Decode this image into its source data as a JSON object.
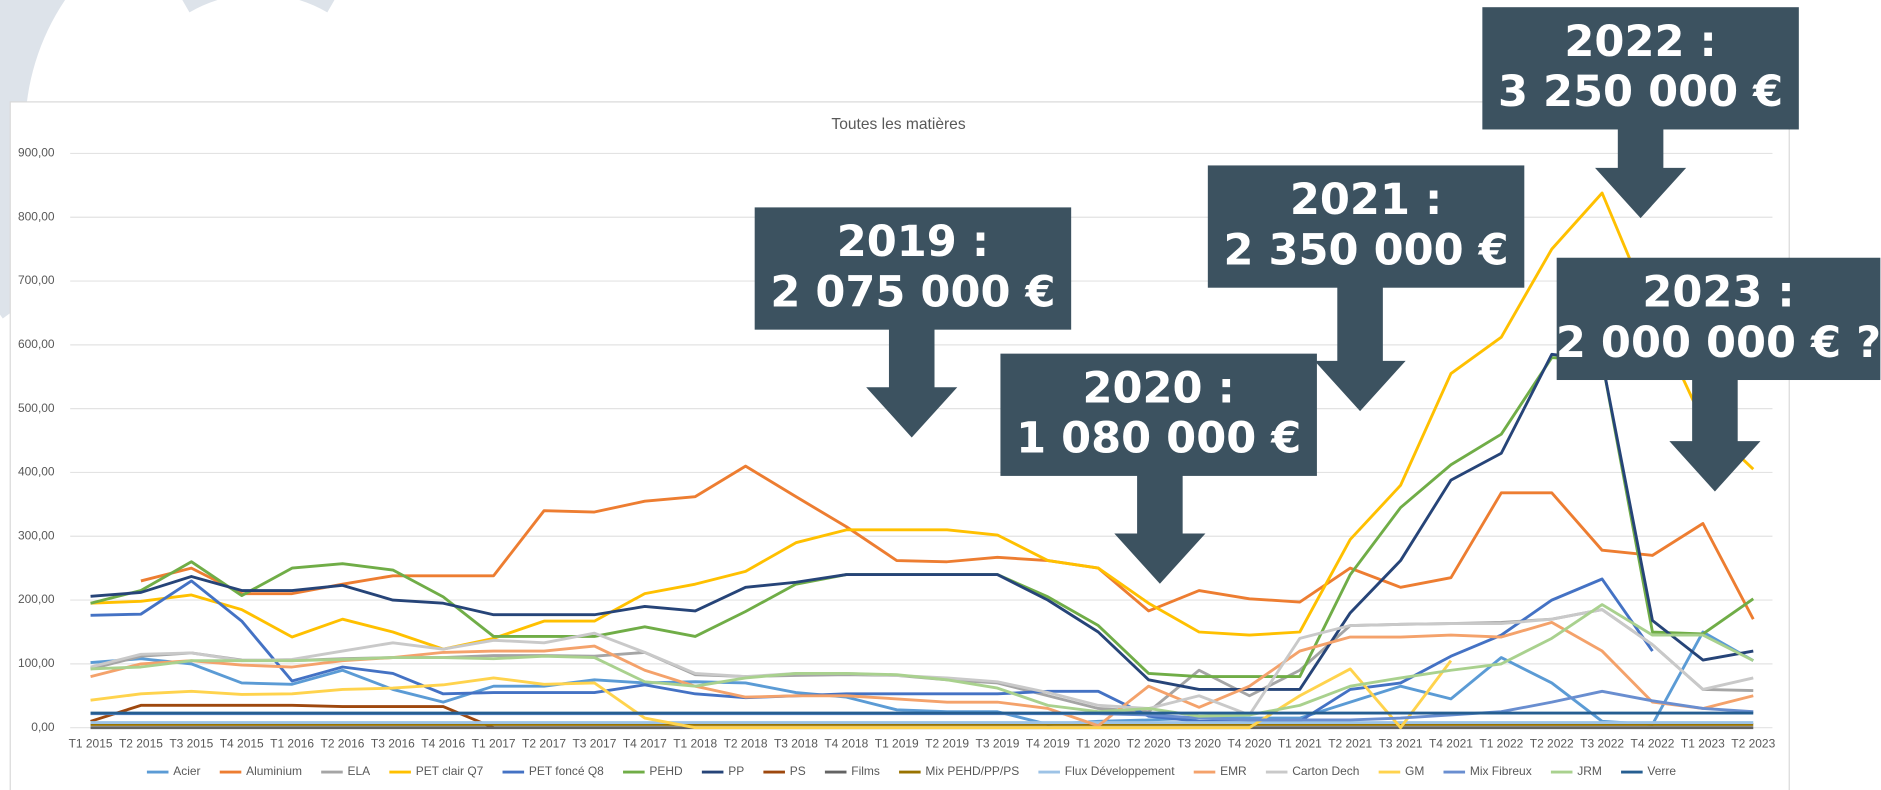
{
  "chart_data": {
    "type": "line",
    "title": "Toutes les matières",
    "categories": [
      "T1 2015",
      "T2 2015",
      "T3 2015",
      "T4 2015",
      "T1 2016",
      "T2 2016",
      "T3 2016",
      "T4 2016",
      "T1 2017",
      "T2 2017",
      "T3 2017",
      "T4 2017",
      "T1 2018",
      "T2 2018",
      "T3 2018",
      "T4 2018",
      "T1 2019",
      "T2 2019",
      "T3 2019",
      "T4 2019",
      "T1 2020",
      "T2 2020",
      "T3 2020",
      "T4 2020",
      "T1 2021",
      "T2 2021",
      "T3 2021",
      "T4 2021",
      "T1 2022",
      "T2 2022",
      "T3 2022",
      "T4 2022",
      "T1 2023",
      "T2 2023"
    ],
    "ylim": [
      0,
      900
    ],
    "yticks": [
      {
        "value": 0,
        "label": "0,00"
      },
      {
        "value": 100,
        "label": "100,00"
      },
      {
        "value": 200,
        "label": "200,00"
      },
      {
        "value": 300,
        "label": "300,00"
      },
      {
        "value": 400,
        "label": "400,00"
      },
      {
        "value": 500,
        "label": "500,00"
      },
      {
        "value": 600,
        "label": "600,00"
      },
      {
        "value": 700,
        "label": "700,00"
      },
      {
        "value": 800,
        "label": "800,00"
      },
      {
        "value": 900,
        "label": "900,00"
      }
    ],
    "grid": true,
    "legend": "bottom",
    "series": [
      {
        "name": "Acier",
        "color": "#5b9bd5",
        "values": [
          102,
          108,
          100,
          70,
          68,
          90,
          60,
          40,
          65,
          65,
          75,
          70,
          72,
          70,
          55,
          48,
          28,
          25,
          25,
          5,
          10,
          12,
          15,
          15,
          15,
          40,
          65,
          45,
          110,
          70,
          10,
          5,
          150,
          105
        ]
      },
      {
        "name": "Aluminium",
        "color": "#ed7d31",
        "values": [
          null,
          230,
          250,
          210,
          210,
          225,
          238,
          238,
          238,
          340,
          338,
          355,
          362,
          410,
          362,
          315,
          262,
          260,
          267,
          262,
          250,
          183,
          215,
          202,
          197,
          250,
          220,
          235,
          368,
          368,
          278,
          270,
          320,
          170
        ]
      },
      {
        "name": "ELA",
        "color": "#a5a5a5",
        "values": [
          92,
          112,
          117,
          106,
          105,
          108,
          110,
          110,
          113,
          113,
          112,
          118,
          83,
          80,
          82,
          83,
          82,
          75,
          70,
          50,
          30,
          25,
          90,
          50,
          90,
          160,
          162,
          163,
          165,
          170,
          185,
          130,
          60,
          58
        ]
      },
      {
        "name": "PET clair Q7",
        "color": "#ffc000",
        "values": [
          195,
          198,
          208,
          185,
          142,
          170,
          150,
          123,
          140,
          167,
          167,
          210,
          225,
          245,
          290,
          310,
          310,
          310,
          302,
          262,
          250,
          195,
          150,
          145,
          150,
          295,
          380,
          555,
          612,
          750,
          838,
          650,
          480,
          405
        ]
      },
      {
        "name": "PET foncé Q8",
        "color": "#4472c4",
        "values": [
          176,
          178,
          230,
          167,
          73,
          95,
          85,
          53,
          55,
          55,
          55,
          67,
          53,
          47,
          50,
          53,
          53,
          53,
          53,
          57,
          57,
          18,
          10,
          10,
          10,
          60,
          70,
          112,
          145,
          200,
          233,
          120,
          null,
          null
        ]
      },
      {
        "name": "PEHD",
        "color": "#70ad47",
        "values": [
          195,
          215,
          260,
          207,
          250,
          257,
          247,
          205,
          143,
          143,
          143,
          158,
          143,
          182,
          225,
          240,
          240,
          240,
          240,
          205,
          160,
          85,
          80,
          80,
          80,
          240,
          345,
          412,
          460,
          580,
          575,
          150,
          147,
          202
        ]
      },
      {
        "name": "PP",
        "color": "#264478",
        "values": [
          206,
          212,
          237,
          215,
          215,
          223,
          200,
          195,
          177,
          177,
          177,
          190,
          183,
          220,
          228,
          240,
          240,
          240,
          240,
          200,
          150,
          75,
          60,
          60,
          60,
          180,
          262,
          388,
          430,
          585,
          575,
          168,
          106,
          120
        ]
      },
      {
        "name": "PS",
        "color": "#9e480e",
        "values": [
          10,
          35,
          35,
          35,
          35,
          33,
          33,
          33,
          0,
          null,
          null,
          null,
          null,
          null,
          null,
          null,
          null,
          null,
          null,
          null,
          null,
          null,
          null,
          null,
          null,
          null,
          null,
          null,
          null,
          null,
          null,
          null,
          null,
          null
        ]
      },
      {
        "name": "Films",
        "color": "#636363",
        "values": [
          0,
          0,
          0,
          0,
          0,
          0,
          0,
          0,
          0,
          0,
          0,
          0,
          0,
          0,
          0,
          0,
          0,
          0,
          0,
          0,
          0,
          0,
          0,
          0,
          0,
          0,
          0,
          0,
          0,
          0,
          0,
          0,
          0,
          0
        ]
      },
      {
        "name": "Mix PEHD/PP/PS",
        "color": "#997300",
        "values": [
          5,
          5,
          5,
          5,
          5,
          5,
          5,
          5,
          5,
          5,
          5,
          5,
          5,
          5,
          5,
          5,
          5,
          5,
          5,
          5,
          5,
          5,
          5,
          5,
          5,
          5,
          5,
          5,
          5,
          5,
          5,
          5,
          5,
          5
        ]
      },
      {
        "name": "Flux Développement",
        "color": "#9dc3e6",
        "values": [
          8,
          8,
          8,
          8,
          8,
          8,
          8,
          8,
          8,
          8,
          8,
          8,
          8,
          8,
          8,
          8,
          8,
          8,
          8,
          8,
          8,
          8,
          8,
          8,
          8,
          8,
          8,
          8,
          8,
          8,
          8,
          8,
          8,
          8
        ]
      },
      {
        "name": "EMR",
        "color": "#f4a26b",
        "values": [
          80,
          100,
          105,
          98,
          95,
          105,
          110,
          118,
          120,
          120,
          128,
          90,
          65,
          48,
          50,
          50,
          45,
          40,
          40,
          30,
          3,
          65,
          32,
          65,
          120,
          142,
          142,
          145,
          142,
          165,
          120,
          40,
          30,
          50
        ]
      },
      {
        "name": "Carton Dech",
        "color": "#c9c9c9",
        "values": [
          95,
          115,
          117,
          105,
          107,
          120,
          133,
          123,
          137,
          133,
          148,
          118,
          85,
          80,
          85,
          85,
          82,
          78,
          72,
          55,
          35,
          30,
          50,
          20,
          140,
          160,
          162,
          163,
          163,
          170,
          185,
          130,
          60,
          78
        ]
      },
      {
        "name": "GM",
        "color": "#ffd34d",
        "values": [
          43,
          53,
          57,
          52,
          53,
          60,
          62,
          67,
          78,
          68,
          70,
          15,
          0,
          0,
          0,
          0,
          0,
          0,
          0,
          0,
          0,
          0,
          0,
          0,
          50,
          92,
          0,
          105,
          null,
          null,
          null,
          null,
          null,
          null
        ]
      },
      {
        "name": "Mix Fibreux",
        "color": "#698ed0",
        "values": [
          22,
          22,
          22,
          22,
          22,
          22,
          22,
          22,
          22,
          22,
          22,
          22,
          22,
          22,
          22,
          22,
          22,
          22,
          22,
          22,
          22,
          20,
          15,
          12,
          12,
          12,
          15,
          20,
          25,
          40,
          57,
          42,
          30,
          25
        ]
      },
      {
        "name": "JRM",
        "color": "#a9d18e",
        "values": [
          92,
          95,
          105,
          105,
          105,
          107,
          110,
          110,
          108,
          112,
          110,
          72,
          65,
          78,
          85,
          85,
          83,
          75,
          62,
          35,
          25,
          30,
          18,
          20,
          35,
          65,
          78,
          90,
          100,
          140,
          193,
          145,
          145,
          105
        ]
      },
      {
        "name": "Verre",
        "color": "#255e91",
        "values": [
          23,
          23,
          23,
          23,
          23,
          23,
          23,
          23,
          23,
          23,
          23,
          23,
          23,
          23,
          23,
          23,
          23,
          23,
          23,
          23,
          23,
          23,
          23,
          23,
          23,
          23,
          23,
          23,
          23,
          23,
          23,
          23,
          23,
          23
        ]
      }
    ],
    "annotations": [
      {
        "lines": [
          "2019 :",
          "2 075 000 €"
        ]
      },
      {
        "lines": [
          "2020 :",
          "1 080 000 €"
        ]
      },
      {
        "lines": [
          "2021 :",
          "2 350 000 €"
        ]
      },
      {
        "lines": [
          "2022 :",
          "3 250 000 €"
        ]
      },
      {
        "lines": [
          "2023 :",
          "2 000 000 € ?"
        ]
      }
    ]
  }
}
